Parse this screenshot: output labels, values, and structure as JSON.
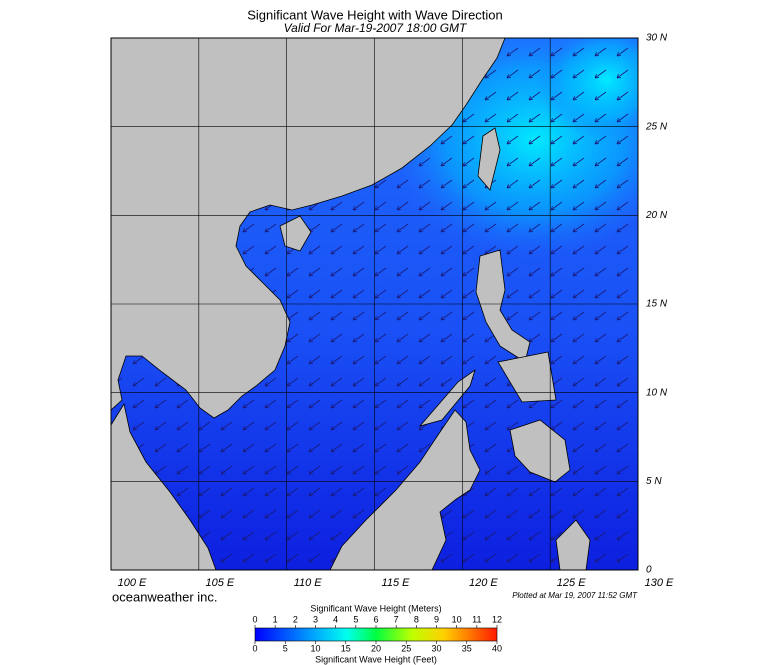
{
  "header": {
    "title": "Significant Wave Height with Wave Direction",
    "subtitle": "Valid For Mar-19-2007 18:00 GMT"
  },
  "map": {
    "lon_range": [
      100,
      130
    ],
    "lat_range": [
      0,
      30
    ],
    "lat_ticks": [
      {
        "value": 0,
        "label": "0"
      },
      {
        "value": 5,
        "label": "5 N"
      },
      {
        "value": 10,
        "label": "10 N"
      },
      {
        "value": 15,
        "label": "15 N"
      },
      {
        "value": 20,
        "label": "20 N"
      },
      {
        "value": 25,
        "label": "25 N"
      },
      {
        "value": 30,
        "label": "30 N"
      }
    ],
    "lon_ticks": [
      {
        "value": 100,
        "label": "100 E"
      },
      {
        "value": 105,
        "label": "105 E"
      },
      {
        "value": 110,
        "label": "110 E"
      },
      {
        "value": 115,
        "label": "115 E"
      },
      {
        "value": 120,
        "label": "120 E"
      },
      {
        "value": 125,
        "label": "125 E"
      },
      {
        "value": 130,
        "label": "130 E"
      }
    ]
  },
  "footer": {
    "brand": "oceanweather inc.",
    "plotted": "Plotted at Mar 19, 2007 11:52 GMT"
  },
  "colorbar": {
    "meters_title": "Significant Wave Height (Meters)",
    "meters_range": [
      0,
      12
    ],
    "meters_ticks": [
      0,
      1,
      2,
      3,
      4,
      5,
      6,
      7,
      8,
      9,
      10,
      11,
      12
    ],
    "feet_range": [
      0,
      40
    ],
    "feet_ticks": [
      0,
      5,
      10,
      15,
      20,
      25,
      30,
      35,
      40
    ],
    "feet_title": "Significant Wave Height (Feet)"
  }
}
